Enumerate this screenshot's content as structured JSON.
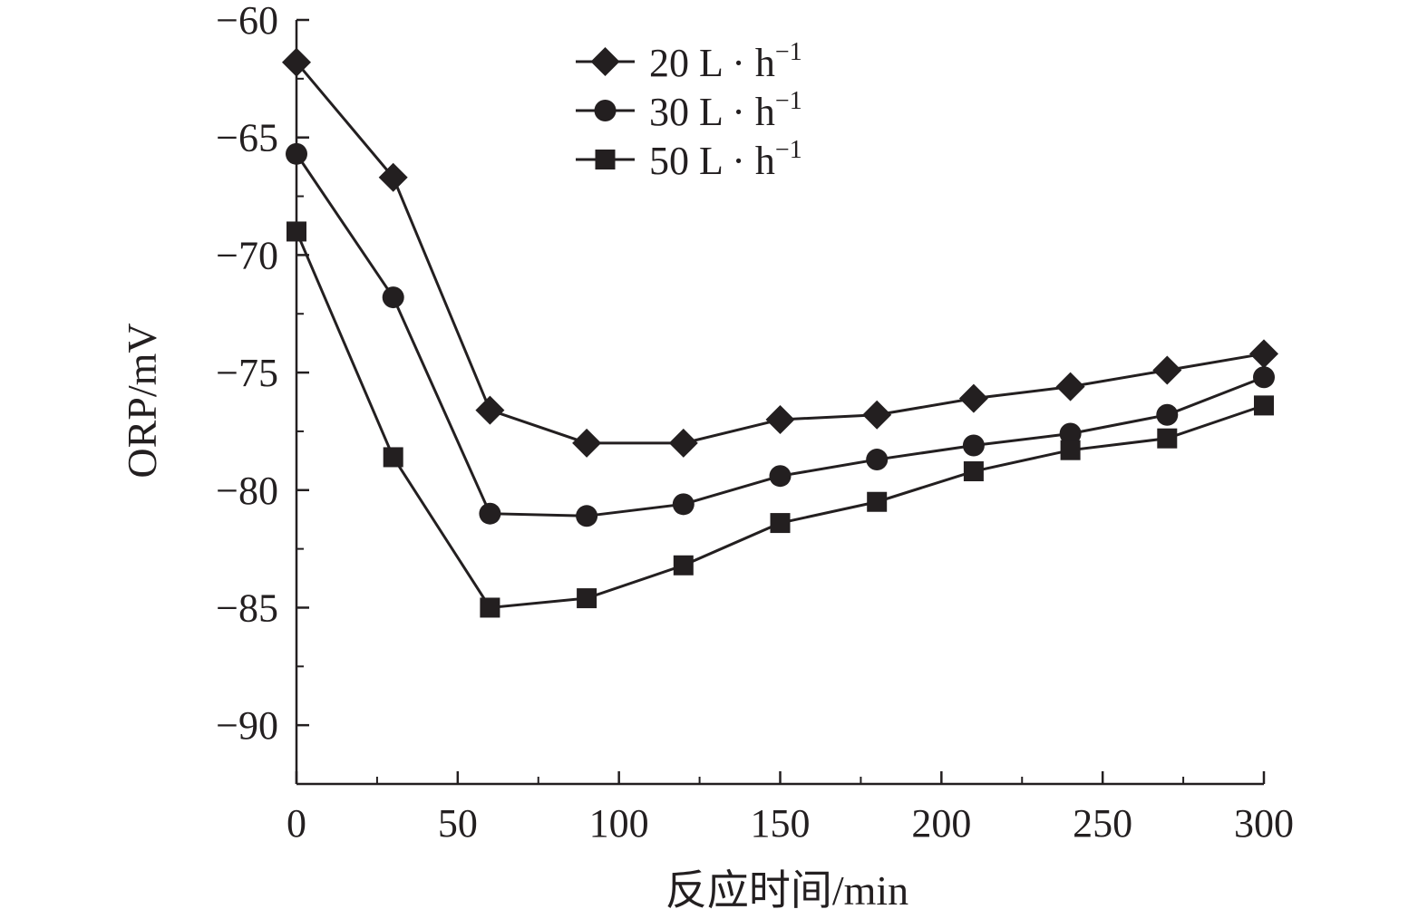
{
  "chart_data": {
    "type": "line",
    "xlabel": "反应时间/min",
    "ylabel": "ORP/mV",
    "xlim": [
      0,
      300
    ],
    "ylim": [
      -92.5,
      -60
    ],
    "x_ticks": [
      0,
      50,
      100,
      150,
      200,
      250,
      300
    ],
    "x_tick_labels": [
      "0",
      "50",
      "100",
      "150",
      "200",
      "250",
      "300"
    ],
    "y_ticks": [
      -60,
      -65,
      -70,
      -75,
      -80,
      -85,
      -90
    ],
    "y_tick_labels": [
      "−60",
      "−65",
      "−70",
      "−75",
      "−80",
      "−85",
      "−90"
    ],
    "grid": false,
    "legend_position": "top-center",
    "x": [
      0,
      30,
      60,
      90,
      120,
      150,
      180,
      210,
      240,
      270,
      300
    ],
    "series": [
      {
        "name": "20 L · h⁻¹",
        "label_main": "20 L · h",
        "label_sup": "−1",
        "marker": "diamond",
        "values": [
          -61.8,
          -66.7,
          -76.6,
          -78.0,
          -78.0,
          -77.0,
          -76.8,
          -76.1,
          -75.6,
          -74.9,
          -74.2
        ]
      },
      {
        "name": "30 L · h⁻¹",
        "label_main": "30 L · h",
        "label_sup": "−1",
        "marker": "circle",
        "values": [
          -65.7,
          -71.8,
          -81.0,
          -81.1,
          -80.6,
          -79.4,
          -78.7,
          -78.1,
          -77.6,
          -76.8,
          -75.2
        ]
      },
      {
        "name": "50 L · h⁻¹",
        "label_main": "50 L · h",
        "label_sup": "−1",
        "marker": "square",
        "values": [
          -69.0,
          -78.6,
          -85.0,
          -84.6,
          -83.2,
          -81.4,
          -80.5,
          -79.2,
          -78.3,
          -77.8,
          -76.4
        ]
      }
    ],
    "colors": {
      "line": "#231f20",
      "background": "#ffffff"
    }
  }
}
